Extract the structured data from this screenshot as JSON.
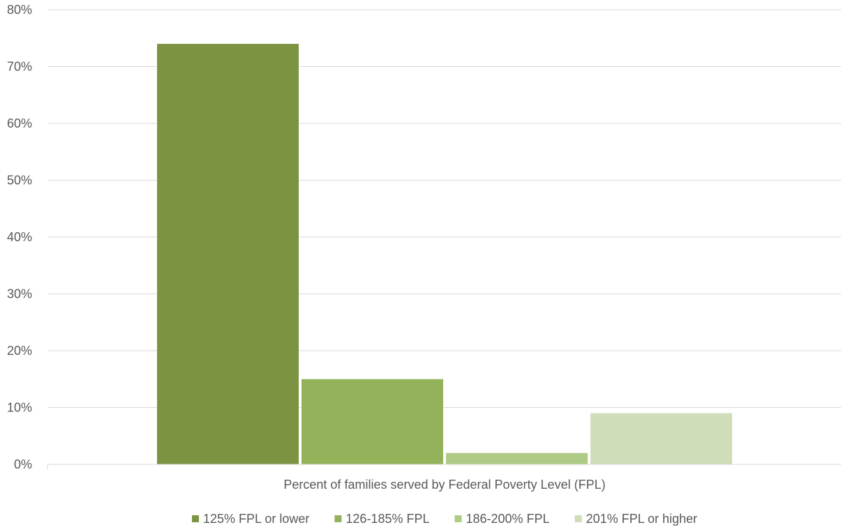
{
  "chart_data": {
    "type": "bar",
    "categories": [
      ""
    ],
    "xlabel": "Percent of families served by Federal Poverty Level (FPL)",
    "ylabel": "",
    "ylim": [
      0,
      80
    ],
    "yticks": [
      "0%",
      "10%",
      "20%",
      "30%",
      "40%",
      "50%",
      "60%",
      "70%",
      "80%"
    ],
    "grid": true,
    "legend_position": "bottom",
    "series": [
      {
        "name": "125% FPL or lower",
        "values": [
          74
        ],
        "color": "#7C9442"
      },
      {
        "name": "126-185% FPL",
        "values": [
          15
        ],
        "color": "#94B259"
      },
      {
        "name": "186-200% FPL",
        "values": [
          2
        ],
        "color": "#AECB85"
      },
      {
        "name": "201% FPL or higher",
        "values": [
          9
        ],
        "color": "#CFDDB8"
      }
    ]
  }
}
